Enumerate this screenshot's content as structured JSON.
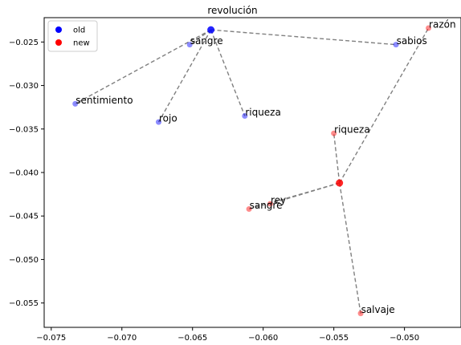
{
  "chart_data": {
    "type": "scatter",
    "title": "revolución",
    "xlabel": "",
    "ylabel": "",
    "xlim": [
      -0.0755,
      -0.046
    ],
    "ylim": [
      -0.0578,
      -0.0222
    ],
    "xticks": [
      {
        "value": -0.075,
        "label": "−0.075"
      },
      {
        "value": -0.07,
        "label": "−0.070"
      },
      {
        "value": -0.065,
        "label": "−0.065"
      },
      {
        "value": -0.06,
        "label": "−0.060"
      },
      {
        "value": -0.055,
        "label": "−0.055"
      },
      {
        "value": -0.05,
        "label": "−0.050"
      }
    ],
    "yticks": [
      {
        "value": -0.025,
        "label": "−0.025"
      },
      {
        "value": -0.03,
        "label": "−0.030"
      },
      {
        "value": -0.035,
        "label": "−0.035"
      },
      {
        "value": -0.04,
        "label": "−0.040"
      },
      {
        "value": -0.045,
        "label": "−0.045"
      },
      {
        "value": -0.05,
        "label": "−0.050"
      },
      {
        "value": -0.055,
        "label": "−0.055"
      }
    ],
    "grid": false,
    "legend_placement": "top-left",
    "series": [
      {
        "name": "old",
        "color": "#0000ff",
        "center": {
          "x": -0.0637,
          "y": -0.0236
        },
        "points": [
          {
            "label": "sangre",
            "x": -0.0652,
            "y": -0.0253
          },
          {
            "label": "sentimiento",
            "x": -0.0733,
            "y": -0.0321
          },
          {
            "label": "rojo",
            "x": -0.0674,
            "y": -0.0342
          },
          {
            "label": "riqueza",
            "x": -0.0613,
            "y": -0.0335
          },
          {
            "label": "sabios",
            "x": -0.0506,
            "y": -0.0253
          }
        ]
      },
      {
        "name": "new",
        "color": "#ff0000",
        "center": {
          "x": -0.0546,
          "y": -0.0412
        },
        "points": [
          {
            "label": "razón",
            "x": -0.0483,
            "y": -0.0234
          },
          {
            "label": "riqueza",
            "x": -0.055,
            "y": -0.0355
          },
          {
            "label": "rey",
            "x": -0.0595,
            "y": -0.0436
          },
          {
            "label": "sangre",
            "x": -0.061,
            "y": -0.0442
          },
          {
            "label": "salvaje",
            "x": -0.0531,
            "y": -0.0562
          }
        ]
      }
    ]
  }
}
